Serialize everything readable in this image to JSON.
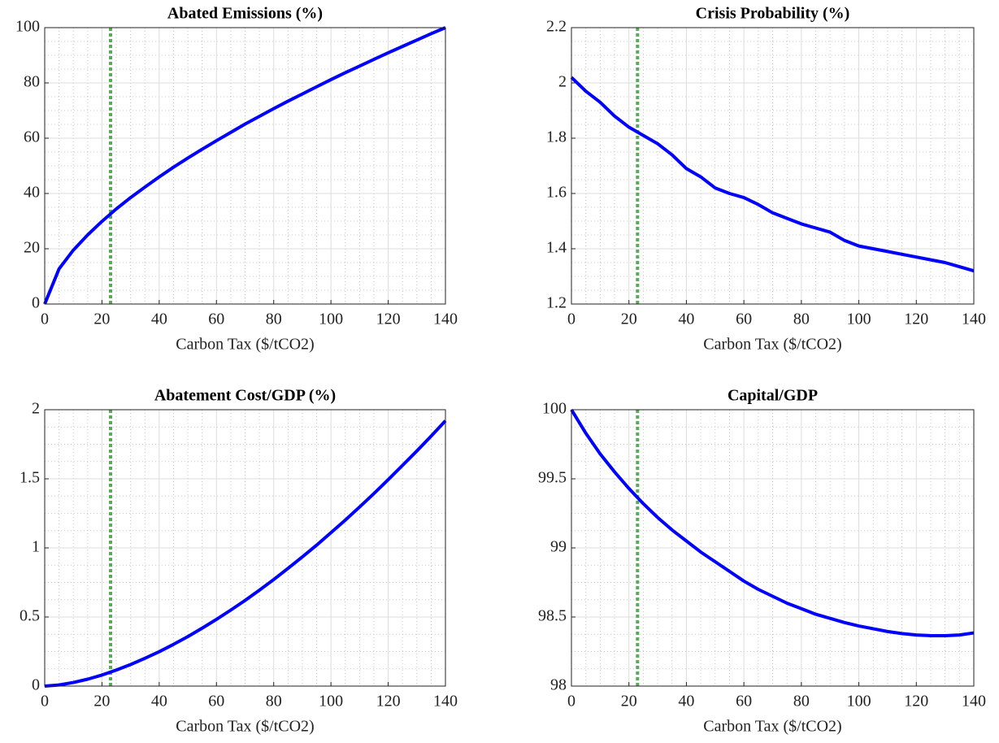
{
  "chart_data": [
    {
      "type": "line",
      "title": "Abated Emissions (%)",
      "xlabel": "Carbon Tax ($/tCO2)",
      "x": [
        0,
        5,
        10,
        15,
        20,
        25,
        30,
        35,
        40,
        45,
        50,
        55,
        60,
        65,
        70,
        75,
        80,
        85,
        90,
        95,
        100,
        105,
        110,
        115,
        120,
        125,
        130,
        135,
        140
      ],
      "series": [
        {
          "color": "#0000ff",
          "values": [
            0,
            12.7,
            19.5,
            25.0,
            29.9,
            34.4,
            38.5,
            42.3,
            46.0,
            49.5,
            52.8,
            56.0,
            59.1,
            62.1,
            65.1,
            67.9,
            70.7,
            73.4,
            76.0,
            78.6,
            81.2,
            83.7,
            86.1,
            88.5,
            90.9,
            93.2,
            95.5,
            97.8,
            100
          ]
        }
      ],
      "xlim": [
        0,
        140
      ],
      "xticks": [
        0,
        20,
        40,
        60,
        80,
        100,
        120,
        140
      ],
      "ylim": [
        0,
        100
      ],
      "yticks": [
        0,
        20,
        40,
        60,
        80,
        100
      ],
      "grid": true,
      "minor_grid": true,
      "vline": {
        "x": 23,
        "color": "#5aaa5a"
      }
    },
    {
      "type": "line",
      "title": "Crisis Probability (%)",
      "xlabel": "Carbon Tax ($/tCO2)",
      "x": [
        0,
        5,
        10,
        15,
        20,
        25,
        30,
        35,
        40,
        45,
        50,
        55,
        60,
        65,
        70,
        75,
        80,
        85,
        90,
        95,
        100,
        105,
        110,
        115,
        120,
        125,
        130,
        135,
        140
      ],
      "series": [
        {
          "color": "#0000ff",
          "values": [
            2.02,
            1.97,
            1.93,
            1.88,
            1.84,
            1.81,
            1.78,
            1.74,
            1.69,
            1.66,
            1.62,
            1.6,
            1.585,
            1.56,
            1.53,
            1.51,
            1.49,
            1.475,
            1.46,
            1.43,
            1.41,
            1.4,
            1.39,
            1.38,
            1.37,
            1.36,
            1.35,
            1.335,
            1.32
          ]
        }
      ],
      "xlim": [
        0,
        140
      ],
      "xticks": [
        0,
        20,
        40,
        60,
        80,
        100,
        120,
        140
      ],
      "ylim": [
        1.2,
        2.2
      ],
      "yticks": [
        1.2,
        1.4,
        1.6,
        1.8,
        2,
        2.2
      ],
      "grid": true,
      "minor_grid": true,
      "vline": {
        "x": 23,
        "color": "#5aaa5a"
      }
    },
    {
      "type": "line",
      "title": "Abatement Cost/GDP (%)",
      "xlabel": "Carbon Tax ($/tCO2)",
      "x": [
        0,
        5,
        10,
        15,
        20,
        25,
        30,
        35,
        40,
        45,
        50,
        55,
        60,
        65,
        70,
        75,
        80,
        85,
        90,
        95,
        100,
        105,
        110,
        115,
        120,
        125,
        130,
        135,
        140
      ],
      "series": [
        {
          "color": "#0000ff",
          "values": [
            0,
            0.008,
            0.026,
            0.05,
            0.08,
            0.116,
            0.156,
            0.201,
            0.249,
            0.302,
            0.358,
            0.419,
            0.483,
            0.55,
            0.62,
            0.694,
            0.771,
            0.852,
            0.935,
            1.02,
            1.11,
            1.201,
            1.296,
            1.393,
            1.494,
            1.597,
            1.701,
            1.809,
            1.92
          ]
        }
      ],
      "xlim": [
        0,
        140
      ],
      "xticks": [
        0,
        20,
        40,
        60,
        80,
        100,
        120,
        140
      ],
      "ylim": [
        0,
        2
      ],
      "yticks": [
        0,
        0.5,
        1,
        1.5,
        2
      ],
      "grid": true,
      "minor_grid": true,
      "vline": {
        "x": 23,
        "color": "#5aaa5a"
      }
    },
    {
      "type": "line",
      "title": "Capital/GDP",
      "xlabel": "Carbon Tax ($/tCO2)",
      "x": [
        0,
        5,
        10,
        15,
        20,
        25,
        30,
        35,
        40,
        45,
        50,
        55,
        60,
        65,
        70,
        75,
        80,
        85,
        90,
        95,
        100,
        105,
        110,
        115,
        120,
        125,
        130,
        135,
        140
      ],
      "series": [
        {
          "color": "#0000ff",
          "values": [
            100,
            99.83,
            99.68,
            99.55,
            99.43,
            99.32,
            99.22,
            99.13,
            99.05,
            98.97,
            98.9,
            98.83,
            98.76,
            98.7,
            98.65,
            98.6,
            98.56,
            98.52,
            98.49,
            98.46,
            98.435,
            98.415,
            98.395,
            98.38,
            98.37,
            98.365,
            98.365,
            98.37,
            98.385
          ]
        }
      ],
      "xlim": [
        0,
        140
      ],
      "xticks": [
        0,
        20,
        40,
        60,
        80,
        100,
        120,
        140
      ],
      "ylim": [
        98,
        100
      ],
      "yticks": [
        98,
        98.5,
        99,
        99.5,
        100
      ],
      "grid": true,
      "minor_grid": true,
      "vline": {
        "x": 23,
        "color": "#5aaa5a"
      }
    }
  ]
}
